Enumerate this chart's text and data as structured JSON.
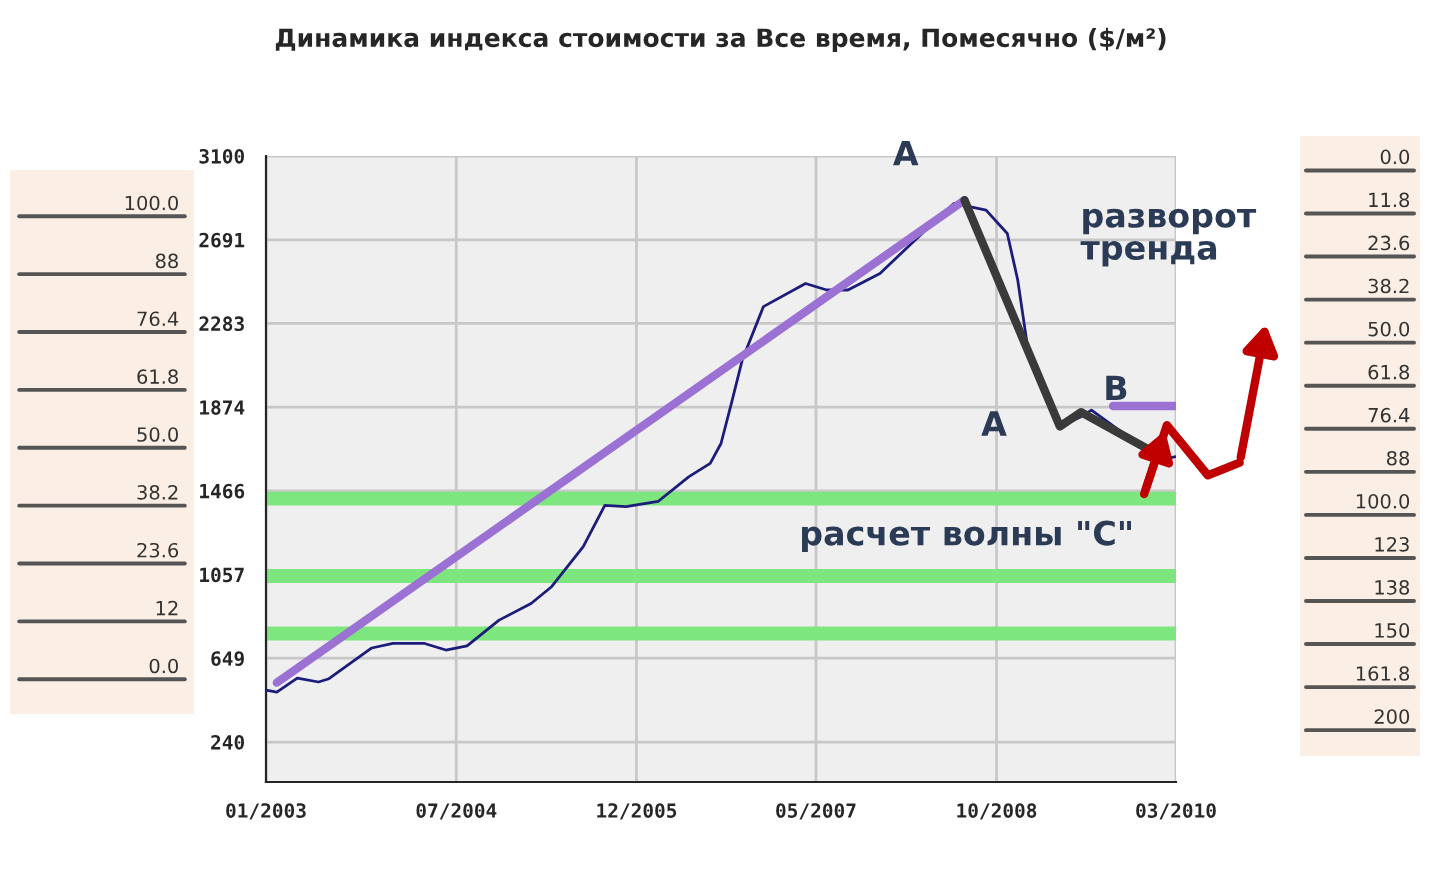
{
  "chart_data": [
    {
      "type": "other",
      "annotations": [
        "100.0",
        "88",
        "76.4",
        "61.8",
        "50.0",
        "38.2",
        "23.6",
        "12",
        "0.0"
      ]
    },
    {
      "type": "line",
      "title": "Динамика индекса стоимости за Все время, Помесячно ($/м²)",
      "series": [
        {
          "color": "#1c1c7a",
          "x": [
            "2003-01",
            "2003-02",
            "2003-04",
            "2003-06",
            "2003-07",
            "2003-11",
            "2004-01",
            "2004-04",
            "2004-06",
            "2004-08",
            "2004-11",
            "2005-02",
            "2005-04",
            "2005-07",
            "2005-09",
            "2005-11",
            "2006-02",
            "2006-05",
            "2006-07",
            "2006-08",
            "2006-09",
            "2006-10",
            "2006-12",
            "2007-04",
            "2007-06",
            "2007-08",
            "2007-11",
            "2008-03",
            "2008-06",
            "2008-09",
            "2008-11",
            "2008-12",
            "2009-01",
            "2009-03",
            "2009-04",
            "2009-06",
            "2009-07",
            "2009-10",
            "2009-12",
            "2010-02",
            "2010-03"
          ],
          "values": [
            494,
            484,
            552,
            533,
            549,
            699,
            721,
            721,
            689,
            709,
            835,
            916,
            998,
            1194,
            1395,
            1389,
            1414,
            1535,
            1600,
            1697,
            1900,
            2104,
            2365,
            2478,
            2446,
            2446,
            2527,
            2722,
            2869,
            2836,
            2722,
            2495,
            2137,
            1909,
            1779,
            1828,
            1860,
            1746,
            1682,
            1623,
            1633
          ]
        },
        {
          "color": "#9b72d4",
          "x": [
            "2003-02",
            "2008-07"
          ],
          "values": [
            530,
            2885
          ]
        },
        {
          "color": "#3a3a3a",
          "x": [
            "2008-07",
            "2009-04",
            "2009-06",
            "2010-02"
          ],
          "values": [
            2885,
            1780,
            1850,
            1620
          ]
        },
        {
          "color": "#9b72d4",
          "x": [
            "2009-09",
            "2010-03"
          ],
          "values": [
            1880,
            1880
          ]
        }
      ],
      "xlim": [
        "2003-01",
        "2010-03"
      ],
      "xticks": [
        {
          "value": "2003-01",
          "label": "01/2003"
        },
        {
          "value": "2004-07",
          "label": "07/2004"
        },
        {
          "value": "2005-12",
          "label": "12/2005"
        },
        {
          "value": "2007-05",
          "label": "05/2007"
        },
        {
          "value": "2008-10",
          "label": "10/2008"
        },
        {
          "value": "2010-03",
          "label": "03/2010"
        }
      ],
      "ylim": [
        45,
        3100
      ],
      "yticks": [
        240,
        649,
        1057,
        1466,
        1874,
        2283,
        2691,
        3100
      ],
      "ref_lines": [
        {
          "axis": "y",
          "value": 1428,
          "color": "#7ee67e"
        },
        {
          "axis": "y",
          "value": 1050,
          "color": "#7ee67e"
        },
        {
          "axis": "y",
          "value": 770,
          "color": "#7ee67e"
        }
      ],
      "annotations": [
        "A",
        "A",
        "B",
        "разворот\nтренда",
        "расчет волны \"C\""
      ],
      "grid": true,
      "legend": false,
      "marker": "none",
      "line_style": "solid"
    },
    {
      "type": "other",
      "annotations": [
        "0.0",
        "11.8",
        "23.6",
        "38.2",
        "50.0",
        "61.8",
        "76.4",
        "88",
        "100.0",
        "123",
        "138",
        "150",
        "161.8",
        "200"
      ]
    }
  ]
}
